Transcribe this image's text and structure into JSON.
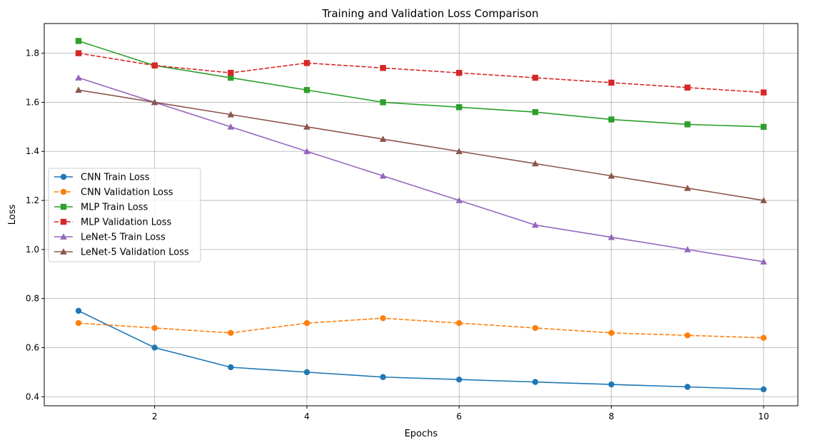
{
  "chart_data": {
    "type": "line",
    "title": "Training and Validation Loss Comparison",
    "xlabel": "Epochs",
    "ylabel": "Loss",
    "xlim": [
      0.55,
      10.45
    ],
    "ylim": [
      0.363,
      1.921
    ],
    "xticks": [
      2,
      4,
      6,
      8,
      10
    ],
    "yticks": [
      0.4,
      0.6,
      0.8,
      1.0,
      1.2,
      1.4,
      1.6,
      1.8
    ],
    "grid": true,
    "legend_position": "center-left",
    "x": [
      1,
      2,
      3,
      4,
      5,
      6,
      7,
      8,
      9,
      10
    ],
    "series": [
      {
        "name": "CNN Train Loss",
        "color": "#1f77b4",
        "dash": "solid",
        "marker": "circle",
        "values": [
          0.75,
          0.6,
          0.52,
          0.5,
          0.48,
          0.47,
          0.46,
          0.45,
          0.44,
          0.43
        ]
      },
      {
        "name": "CNN Validation Loss",
        "color": "#ff7f0e",
        "dash": "dashed",
        "marker": "circle",
        "values": [
          0.7,
          0.68,
          0.66,
          0.7,
          0.72,
          0.7,
          0.68,
          0.66,
          0.65,
          0.64
        ]
      },
      {
        "name": "MLP Train Loss",
        "color": "#2ca02c",
        "dash": "solid",
        "marker": "square",
        "values": [
          1.85,
          1.75,
          1.7,
          1.65,
          1.6,
          1.58,
          1.56,
          1.53,
          1.51,
          1.5
        ]
      },
      {
        "name": "MLP Validation Loss",
        "color": "#d62728",
        "dash": "dashed",
        "marker": "square",
        "values": [
          1.8,
          1.75,
          1.72,
          1.76,
          1.74,
          1.72,
          1.7,
          1.68,
          1.66,
          1.64
        ]
      },
      {
        "name": "LeNet-5 Train Loss",
        "color": "#9467bd",
        "dash": "solid",
        "marker": "triangle",
        "values": [
          1.7,
          1.6,
          1.5,
          1.4,
          1.3,
          1.2,
          1.1,
          1.05,
          1.0,
          0.95
        ]
      },
      {
        "name": "LeNet-5 Validation Loss",
        "color": "#8c564b",
        "dash": "solid",
        "marker": "triangle",
        "values": [
          1.65,
          1.6,
          1.55,
          1.5,
          1.45,
          1.4,
          1.35,
          1.3,
          1.25,
          1.2
        ]
      }
    ]
  }
}
